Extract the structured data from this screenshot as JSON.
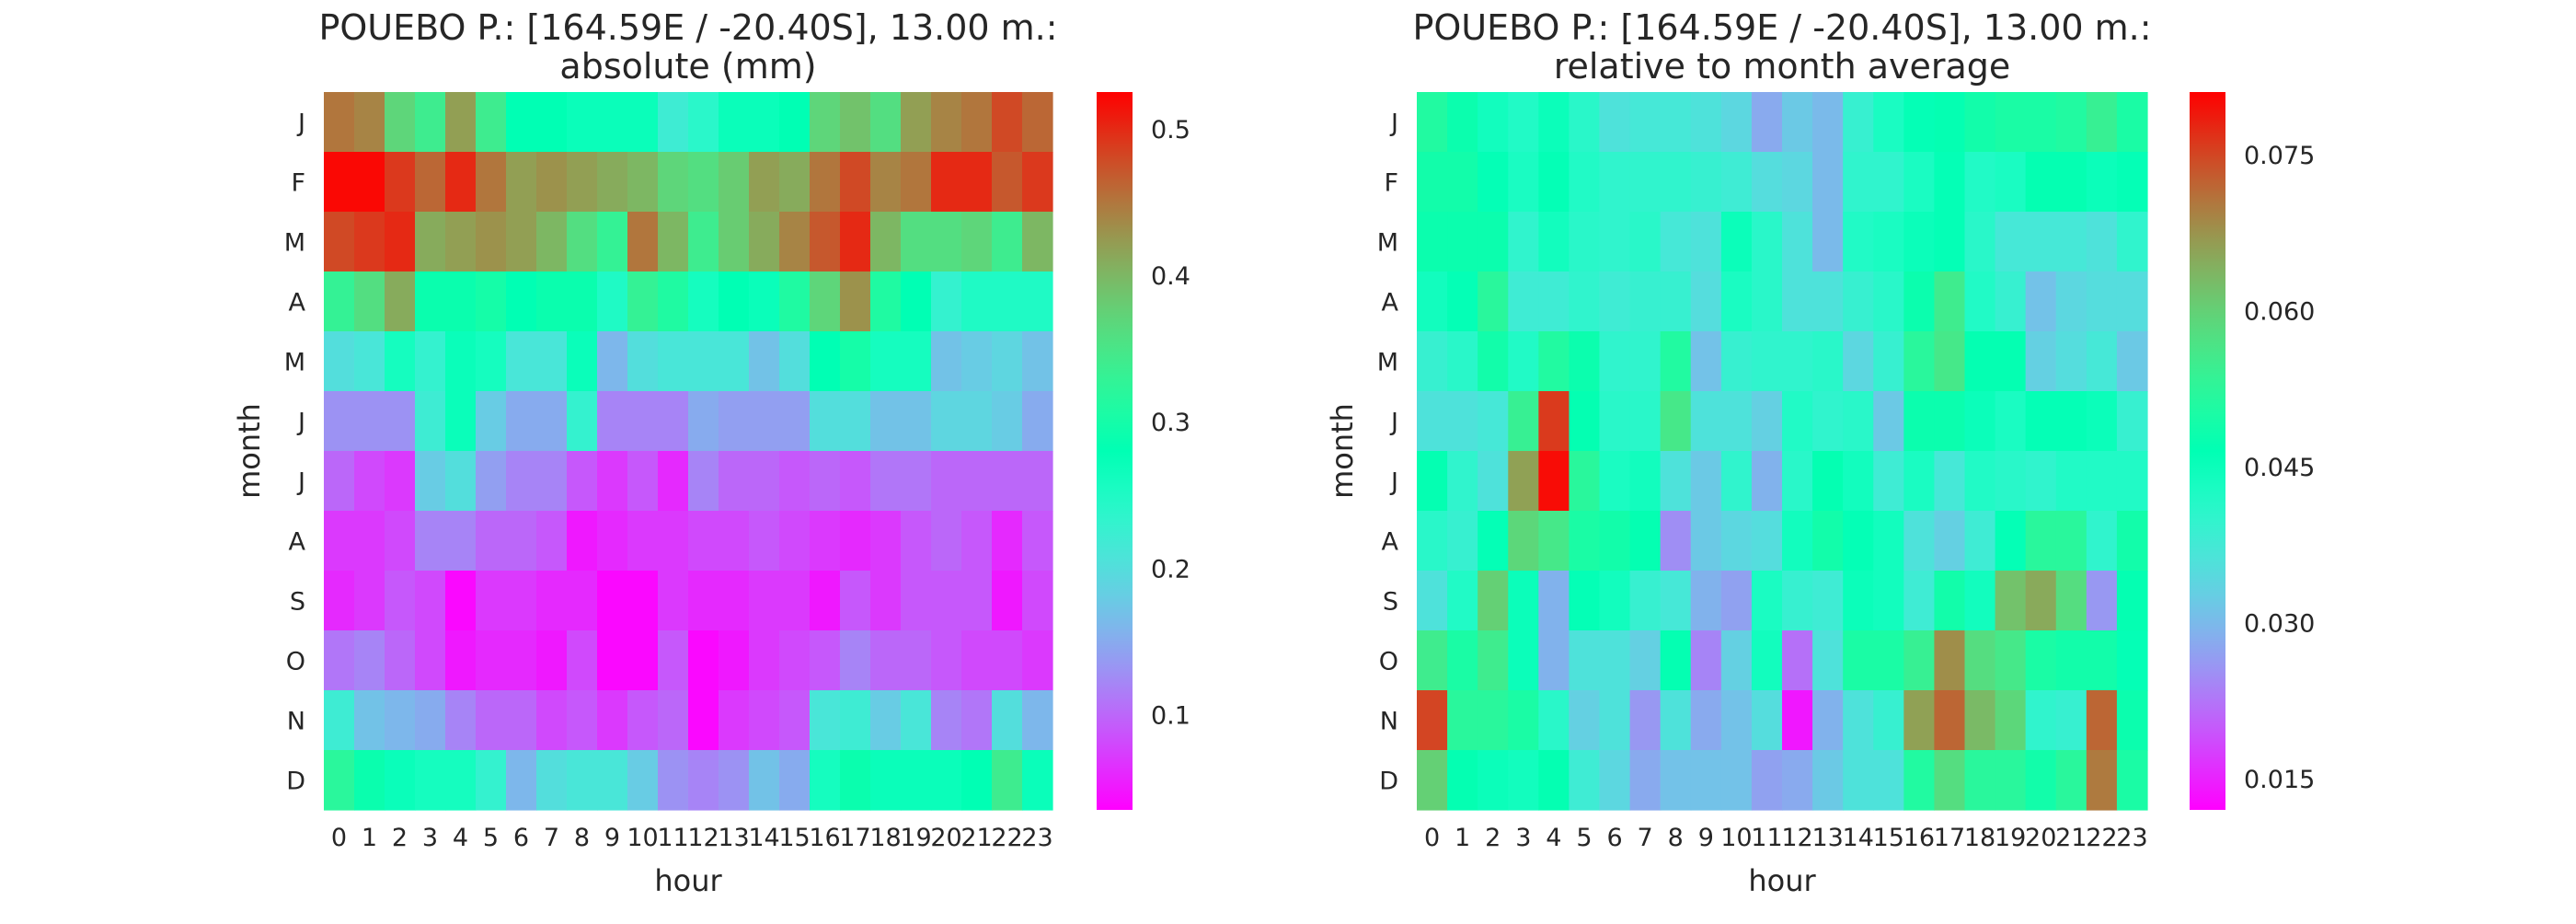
{
  "chart_data": [
    {
      "type": "heatmap",
      "title": "POUEBO P.: [164.59E / -20.40S], 13.00 m.:",
      "subtitle": "absolute (mm)",
      "xlabel": "hour",
      "ylabel": "month",
      "x_ticks": [
        "0",
        "1",
        "2",
        "3",
        "4",
        "5",
        "6",
        "7",
        "8",
        "9",
        "10",
        "11",
        "12",
        "13",
        "14",
        "15",
        "16",
        "17",
        "18",
        "19",
        "20",
        "21",
        "22",
        "23"
      ],
      "y_ticks": [
        "J",
        "F",
        "M",
        "A",
        "M",
        "J",
        "J",
        "A",
        "S",
        "O",
        "N",
        "D"
      ],
      "colorbar": {
        "min": 0.035,
        "max": 0.525,
        "ticks": [
          0.1,
          0.2,
          0.3,
          0.4,
          0.5
        ],
        "tick_labels": [
          "0.1",
          "0.2",
          "0.3",
          "0.4",
          "0.5"
        ],
        "colormap": "rainbow"
      },
      "values": [
        [
          0.45,
          0.44,
          0.37,
          0.34,
          0.42,
          0.34,
          0.28,
          0.28,
          0.27,
          0.27,
          0.27,
          0.22,
          0.24,
          0.27,
          0.27,
          0.28,
          0.37,
          0.39,
          0.36,
          0.42,
          0.44,
          0.45,
          0.48,
          0.46
        ],
        [
          0.52,
          0.52,
          0.49,
          0.46,
          0.5,
          0.45,
          0.42,
          0.43,
          0.42,
          0.41,
          0.4,
          0.37,
          0.36,
          0.38,
          0.42,
          0.41,
          0.45,
          0.48,
          0.44,
          0.45,
          0.5,
          0.5,
          0.47,
          0.49
        ],
        [
          0.48,
          0.49,
          0.5,
          0.41,
          0.42,
          0.43,
          0.42,
          0.4,
          0.36,
          0.33,
          0.45,
          0.4,
          0.34,
          0.38,
          0.41,
          0.44,
          0.47,
          0.5,
          0.4,
          0.36,
          0.36,
          0.37,
          0.34,
          0.4
        ],
        [
          0.33,
          0.36,
          0.41,
          0.29,
          0.29,
          0.3,
          0.28,
          0.29,
          0.29,
          0.25,
          0.33,
          0.31,
          0.26,
          0.28,
          0.27,
          0.31,
          0.37,
          0.43,
          0.31,
          0.28,
          0.23,
          0.25,
          0.25,
          0.25
        ],
        [
          0.2,
          0.21,
          0.26,
          0.23,
          0.27,
          0.26,
          0.21,
          0.21,
          0.27,
          0.16,
          0.2,
          0.21,
          0.21,
          0.21,
          0.17,
          0.2,
          0.28,
          0.3,
          0.26,
          0.26,
          0.17,
          0.18,
          0.19,
          0.17
        ],
        [
          0.13,
          0.13,
          0.13,
          0.22,
          0.27,
          0.18,
          0.15,
          0.15,
          0.23,
          0.12,
          0.12,
          0.12,
          0.15,
          0.14,
          0.14,
          0.14,
          0.2,
          0.2,
          0.17,
          0.17,
          0.19,
          0.19,
          0.18,
          0.15
        ],
        [
          0.1,
          0.08,
          0.07,
          0.18,
          0.2,
          0.14,
          0.12,
          0.12,
          0.09,
          0.07,
          0.09,
          0.06,
          0.12,
          0.1,
          0.1,
          0.09,
          0.1,
          0.09,
          0.11,
          0.11,
          0.1,
          0.1,
          0.1,
          0.1
        ],
        [
          0.07,
          0.07,
          0.08,
          0.12,
          0.12,
          0.1,
          0.1,
          0.09,
          0.05,
          0.06,
          0.07,
          0.07,
          0.08,
          0.08,
          0.09,
          0.08,
          0.07,
          0.06,
          0.07,
          0.09,
          0.1,
          0.09,
          0.06,
          0.09
        ],
        [
          0.06,
          0.07,
          0.09,
          0.08,
          0.04,
          0.07,
          0.07,
          0.06,
          0.06,
          0.04,
          0.04,
          0.07,
          0.06,
          0.06,
          0.07,
          0.07,
          0.05,
          0.09,
          0.07,
          0.09,
          0.09,
          0.09,
          0.05,
          0.08
        ],
        [
          0.11,
          0.12,
          0.1,
          0.08,
          0.05,
          0.06,
          0.06,
          0.05,
          0.08,
          0.04,
          0.04,
          0.09,
          0.04,
          0.05,
          0.07,
          0.08,
          0.09,
          0.12,
          0.1,
          0.1,
          0.09,
          0.08,
          0.08,
          0.07
        ],
        [
          0.22,
          0.17,
          0.16,
          0.15,
          0.12,
          0.1,
          0.1,
          0.08,
          0.09,
          0.07,
          0.09,
          0.1,
          0.04,
          0.07,
          0.08,
          0.09,
          0.21,
          0.22,
          0.18,
          0.21,
          0.12,
          0.11,
          0.2,
          0.16
        ],
        [
          0.32,
          0.29,
          0.27,
          0.26,
          0.26,
          0.23,
          0.16,
          0.2,
          0.21,
          0.21,
          0.18,
          0.13,
          0.12,
          0.13,
          0.17,
          0.15,
          0.26,
          0.29,
          0.27,
          0.27,
          0.27,
          0.28,
          0.34,
          0.27
        ]
      ]
    },
    {
      "type": "heatmap",
      "title": "POUEBO P.: [164.59E / -20.40S], 13.00 m.:",
      "subtitle": "relative to month average",
      "xlabel": "hour",
      "ylabel": "month",
      "x_ticks": [
        "0",
        "1",
        "2",
        "3",
        "4",
        "5",
        "6",
        "7",
        "8",
        "9",
        "10",
        "11",
        "12",
        "13",
        "14",
        "15",
        "16",
        "17",
        "18",
        "19",
        "20",
        "21",
        "22",
        "23"
      ],
      "y_ticks": [
        "J",
        "F",
        "M",
        "A",
        "M",
        "J",
        "J",
        "A",
        "S",
        "O",
        "N",
        "D"
      ],
      "colorbar": {
        "min": 0.012,
        "max": 0.081,
        "ticks": [
          0.015,
          0.03,
          0.045,
          0.06,
          0.075
        ],
        "tick_labels": [
          "0.015",
          "0.030",
          "0.045",
          "0.060",
          "0.075"
        ],
        "colormap": "rainbow"
      },
      "values": [
        [
          0.051,
          0.048,
          0.044,
          0.042,
          0.045,
          0.041,
          0.036,
          0.037,
          0.037,
          0.036,
          0.034,
          0.028,
          0.032,
          0.03,
          0.039,
          0.043,
          0.046,
          0.047,
          0.049,
          0.05,
          0.05,
          0.051,
          0.054,
          0.05
        ],
        [
          0.049,
          0.049,
          0.046,
          0.043,
          0.046,
          0.042,
          0.04,
          0.04,
          0.04,
          0.039,
          0.038,
          0.035,
          0.034,
          0.03,
          0.04,
          0.04,
          0.043,
          0.046,
          0.042,
          0.043,
          0.047,
          0.047,
          0.045,
          0.046
        ],
        [
          0.048,
          0.048,
          0.048,
          0.04,
          0.044,
          0.041,
          0.04,
          0.041,
          0.037,
          0.036,
          0.045,
          0.041,
          0.036,
          0.03,
          0.042,
          0.043,
          0.045,
          0.046,
          0.041,
          0.037,
          0.037,
          0.037,
          0.036,
          0.04
        ],
        [
          0.044,
          0.046,
          0.052,
          0.038,
          0.038,
          0.04,
          0.038,
          0.039,
          0.039,
          0.035,
          0.043,
          0.041,
          0.036,
          0.036,
          0.039,
          0.041,
          0.048,
          0.055,
          0.042,
          0.039,
          0.031,
          0.034,
          0.035,
          0.035
        ],
        [
          0.039,
          0.041,
          0.049,
          0.042,
          0.051,
          0.048,
          0.04,
          0.04,
          0.051,
          0.031,
          0.039,
          0.04,
          0.04,
          0.041,
          0.034,
          0.039,
          0.052,
          0.056,
          0.047,
          0.047,
          0.033,
          0.035,
          0.037,
          0.032
        ],
        [
          0.036,
          0.036,
          0.037,
          0.054,
          0.076,
          0.047,
          0.041,
          0.041,
          0.056,
          0.036,
          0.036,
          0.033,
          0.042,
          0.04,
          0.041,
          0.032,
          0.048,
          0.048,
          0.045,
          0.043,
          0.046,
          0.046,
          0.045,
          0.039
        ],
        [
          0.047,
          0.04,
          0.036,
          0.066,
          0.08,
          0.052,
          0.043,
          0.044,
          0.036,
          0.032,
          0.04,
          0.029,
          0.041,
          0.047,
          0.044,
          0.038,
          0.043,
          0.037,
          0.042,
          0.041,
          0.04,
          0.042,
          0.042,
          0.042
        ],
        [
          0.041,
          0.039,
          0.046,
          0.059,
          0.056,
          0.05,
          0.049,
          0.047,
          0.025,
          0.032,
          0.034,
          0.035,
          0.044,
          0.049,
          0.046,
          0.044,
          0.036,
          0.033,
          0.038,
          0.046,
          0.052,
          0.052,
          0.04,
          0.049
        ],
        [
          0.036,
          0.042,
          0.06,
          0.045,
          0.029,
          0.046,
          0.044,
          0.039,
          0.037,
          0.029,
          0.027,
          0.043,
          0.039,
          0.038,
          0.045,
          0.044,
          0.038,
          0.049,
          0.044,
          0.062,
          0.065,
          0.058,
          0.026,
          0.047
        ],
        [
          0.055,
          0.05,
          0.055,
          0.045,
          0.029,
          0.036,
          0.036,
          0.033,
          0.047,
          0.024,
          0.033,
          0.044,
          0.022,
          0.036,
          0.05,
          0.05,
          0.054,
          0.068,
          0.058,
          0.056,
          0.05,
          0.049,
          0.049,
          0.046
        ],
        [
          0.075,
          0.052,
          0.052,
          0.05,
          0.041,
          0.033,
          0.036,
          0.026,
          0.036,
          0.028,
          0.031,
          0.035,
          0.014,
          0.029,
          0.036,
          0.039,
          0.066,
          0.072,
          0.063,
          0.059,
          0.04,
          0.039,
          0.072,
          0.048
        ],
        [
          0.06,
          0.047,
          0.045,
          0.044,
          0.047,
          0.038,
          0.034,
          0.028,
          0.031,
          0.031,
          0.031,
          0.027,
          0.028,
          0.032,
          0.036,
          0.036,
          0.051,
          0.058,
          0.052,
          0.052,
          0.049,
          0.052,
          0.07,
          0.05
        ]
      ]
    }
  ]
}
